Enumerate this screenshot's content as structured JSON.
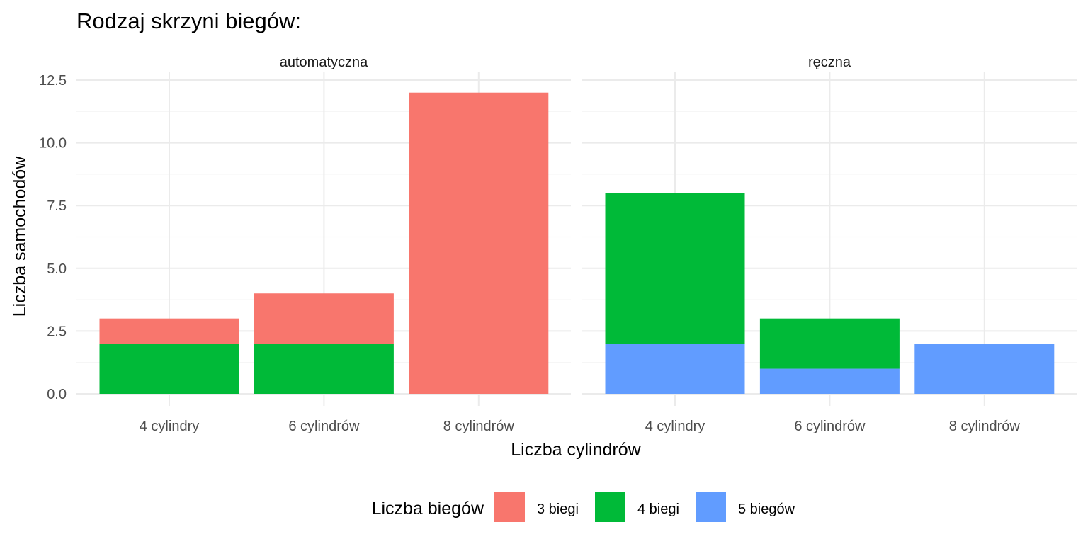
{
  "chart_data": {
    "type": "bar",
    "stacked": true,
    "title": "Rodzaj skrzyni biegów:",
    "xlabel": "Liczba cylindrów",
    "ylabel": "Liczba samochodów",
    "ylim": [
      0,
      12.6
    ],
    "y_ticks": [
      "0.0",
      "2.5",
      "5.0",
      "7.5",
      "10.0",
      "12.5"
    ],
    "y_tick_values": [
      0,
      2.5,
      5,
      7.5,
      10,
      12.5
    ],
    "grid": true,
    "categories": [
      "4 cylindry",
      "6 cylindrów",
      "8 cylindrów"
    ],
    "facets": [
      "automatyczna",
      "ręczna"
    ],
    "legend": {
      "title": "Liczba biegów",
      "placement": "bottom",
      "items": [
        {
          "label": "3 biegi",
          "color": "#F8766D"
        },
        {
          "label": "4 biegi",
          "color": "#00BA38"
        },
        {
          "label": "5 biegów",
          "color": "#619CFF"
        }
      ]
    },
    "panels": [
      {
        "facet": "automatyczna",
        "series": [
          {
            "name": "3 biegi",
            "values": [
              1,
              2,
              12
            ]
          },
          {
            "name": "4 biegi",
            "values": [
              2,
              2,
              0
            ]
          },
          {
            "name": "5 biegów",
            "values": [
              0,
              0,
              0
            ]
          }
        ]
      },
      {
        "facet": "ręczna",
        "series": [
          {
            "name": "3 biegi",
            "values": [
              0,
              0,
              0
            ]
          },
          {
            "name": "4 biegi",
            "values": [
              6,
              2,
              0
            ]
          },
          {
            "name": "5 biegów",
            "values": [
              2,
              1,
              2
            ]
          }
        ]
      }
    ]
  }
}
